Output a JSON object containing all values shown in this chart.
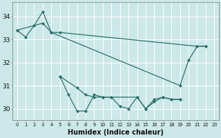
{
  "xlabel": "Humidex (Indice chaleur)",
  "bg_color": "#cce8e8",
  "grid_color": "#ffffff",
  "line_color": "#2d7068",
  "xlim": [
    -0.5,
    23.5
  ],
  "ylim": [
    29.5,
    34.6
  ],
  "yticks": [
    30,
    31,
    32,
    33,
    34
  ],
  "xtick_labels": [
    "0",
    "1",
    "2",
    "3",
    "4",
    "5",
    "6",
    "7",
    "8",
    "9",
    "10",
    "11",
    "12",
    "13",
    "14",
    "15",
    "16",
    "17",
    "18",
    "19",
    "20",
    "21",
    "22",
    "23"
  ],
  "xtick_positions": [
    0,
    1,
    2,
    3,
    4,
    5,
    6,
    7,
    8,
    9,
    10,
    11,
    12,
    13,
    14,
    15,
    16,
    17,
    18,
    19,
    20,
    21,
    22,
    23
  ],
  "series": [
    {
      "x": [
        0,
        1,
        2,
        3,
        4,
        5,
        21,
        22
      ],
      "y": [
        33.4,
        33.1,
        33.6,
        34.2,
        33.3,
        33.3,
        32.7,
        32.7
      ]
    },
    {
      "x": [
        0,
        3,
        4,
        19,
        20,
        21,
        22
      ],
      "y": [
        33.4,
        33.7,
        33.3,
        31.0,
        32.1,
        32.7,
        32.7
      ]
    },
    {
      "x": [
        5,
        7,
        8,
        9,
        10,
        11,
        14,
        15,
        16,
        17,
        18,
        19
      ],
      "y": [
        31.4,
        30.9,
        30.6,
        30.5,
        30.5,
        30.5,
        30.5,
        30.0,
        30.4,
        30.5,
        30.4,
        30.4
      ]
    },
    {
      "x": [
        5,
        6,
        7,
        8,
        9,
        10,
        11,
        12,
        13,
        14,
        15,
        16,
        17,
        18,
        19
      ],
      "y": [
        31.4,
        30.6,
        29.9,
        29.9,
        30.6,
        30.5,
        30.5,
        30.1,
        30.0,
        30.5,
        30.0,
        30.3,
        30.5,
        30.4,
        30.4
      ]
    }
  ]
}
